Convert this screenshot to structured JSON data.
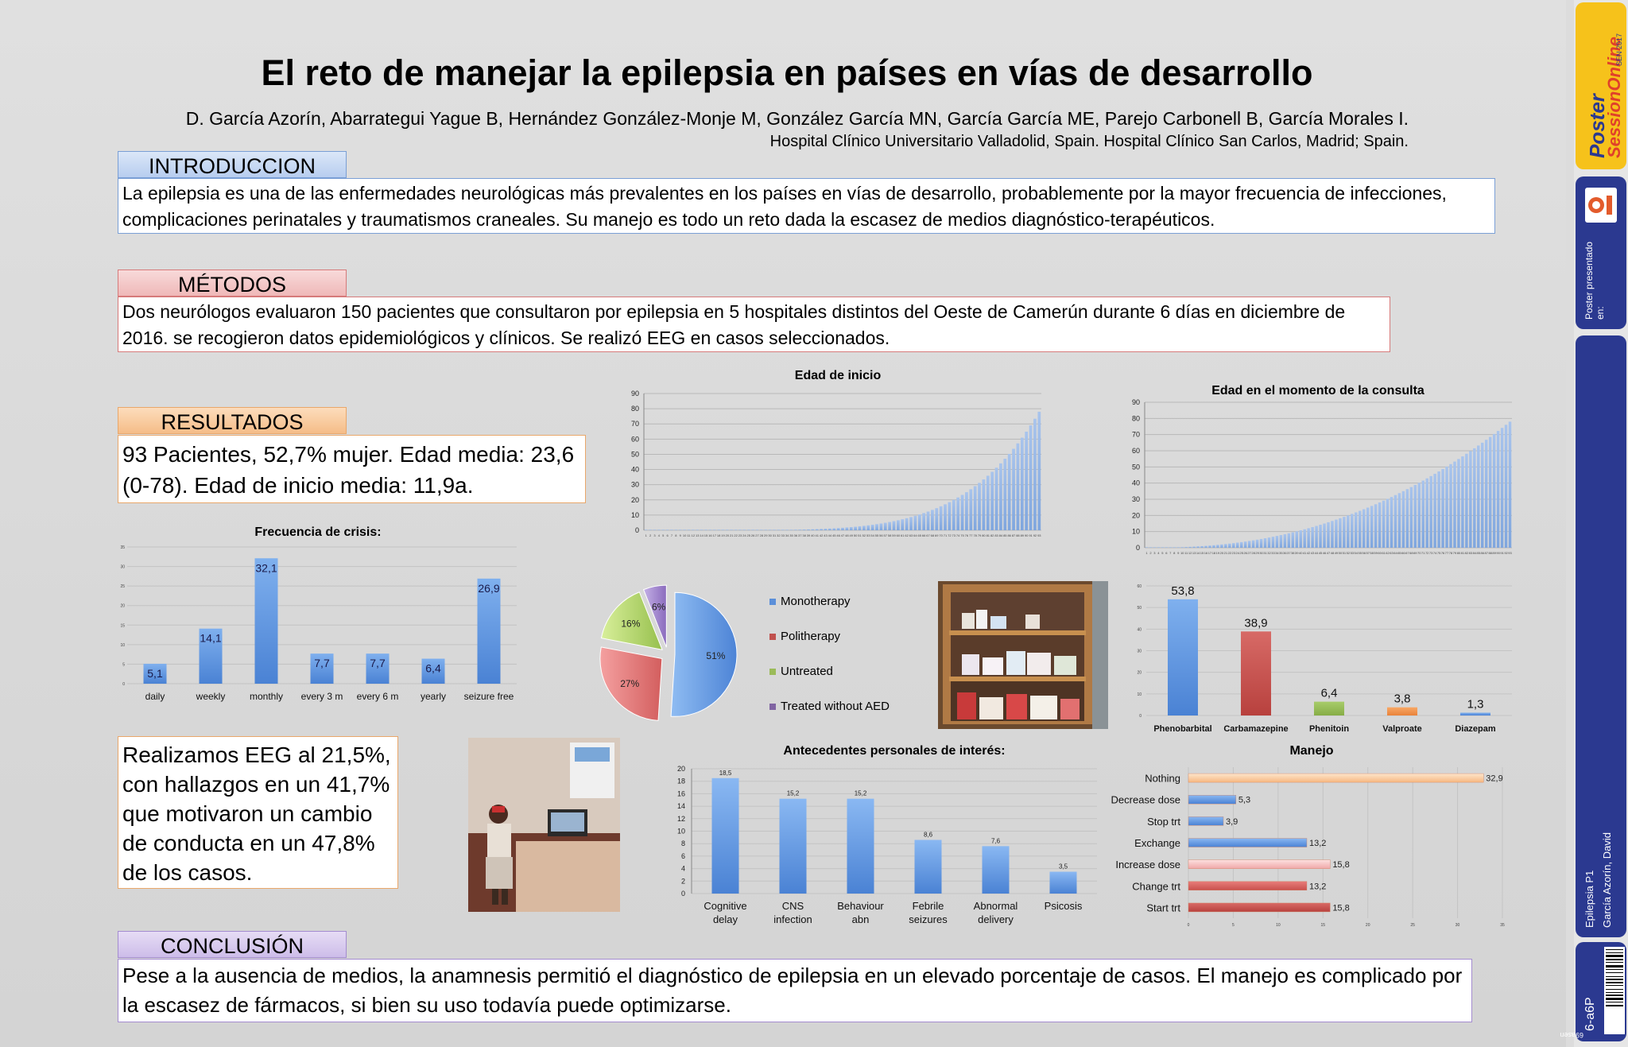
{
  "header": {
    "title": "El reto de manejar la epilepsia en países en vías de desarrollo",
    "authors": "D. García Azorín,  Abarrategui Yague B, Hernández González-Monje M, González García MN, García García ME, Parejo Carbonell B, García Morales I.",
    "affiliation": "Hospital Clínico Universitario Valladolid, Spain. Hospital Clínico San Carlos, Madrid; Spain."
  },
  "sections": {
    "intro": {
      "label": "INTRODUCCION",
      "text": "La epilepsia es una de las enfermedades neurológicas más prevalentes en los países en vías de desarrollo, probablemente por la mayor frecuencia de infecciones, complicaciones perinatales y traumatismos craneales. Su manejo es todo un reto dada la escasez de medios diagnóstico-terapéuticos."
    },
    "methods": {
      "label": "MÉTODOS",
      "text": "Dos neurólogos evaluaron 150 pacientes que consultaron por epilepsia en 5 hospitales distintos del Oeste de Camerún durante 6 días en diciembre de 2016. se recogieron datos epidemiológicos y clínicos. Se realizó EEG en casos seleccionados."
    },
    "results": {
      "label": "RESULTADOS",
      "text": "93 Pacientes, 52,7% mujer. Edad media: 23,6 (0-78). Edad de inicio media: 11,9a."
    },
    "eeg": {
      "text": "Realizamos EEG al 21,5%, con hallazgos en un 41,7% que motivaron un cambio de conducta en un 47,8% de los casos."
    },
    "conclusion": {
      "label": "CONCLUSIÓN",
      "text": "Pese a la ausencia de medios, la anamnesis permitió el diagnóstico de epilepsia en un elevado porcentaje de casos. El manejo es complicado por la escasez de fármacos, si bien su uso todavía puede optimizarse."
    }
  },
  "colors": {
    "intro_label": "#c6d9f5",
    "intro_border": "#7a9fd6",
    "methods_label": "#f5c6c6",
    "methods_border": "#d67a7a",
    "results_label": "#f9cfa3",
    "results_border": "#e9a76a",
    "conclusion_label": "#dccdf0",
    "conclusion_border": "#a48cd0",
    "blue": "#5b8fd9",
    "red": "#c0504d",
    "green": "#9bbb59",
    "orange": "#f79646",
    "purple": "#8064a2"
  },
  "sidebar": {
    "brand_line1": "Poster",
    "brand_line2": "SessionOnline",
    "brand_small": "SEN 2017",
    "presented": "Poster presentado en:",
    "session": "Epilepsia P1",
    "author": "García Azorín, David",
    "code": "6-a6P",
    "code2": "69asen"
  },
  "chart_data": [
    {
      "id": "edad-inicio",
      "type": "bar",
      "title": "Edad de inicio",
      "ylim": [
        0,
        90
      ],
      "yticks": [
        0,
        10,
        20,
        30,
        40,
        50,
        60,
        70,
        80,
        90
      ],
      "n": 93,
      "min": 0,
      "max": 78,
      "mean": 11.9
    },
    {
      "id": "edad-consulta",
      "type": "bar",
      "title": "Edad en el momento de la consulta",
      "ylim": [
        0,
        90
      ],
      "yticks": [
        0,
        10,
        20,
        30,
        40,
        50,
        60,
        70,
        80,
        90
      ],
      "n": 93,
      "min": 0,
      "max": 78,
      "mean": 23.6
    },
    {
      "id": "frecuencia",
      "type": "bar",
      "title": "Frecuencia de crisis:",
      "categories": [
        "daily",
        "weekly",
        "monthly",
        "every 3 m",
        "every 6 m",
        "yearly",
        "seizure free"
      ],
      "values": [
        5.1,
        14.1,
        32.1,
        7.7,
        7.7,
        6.4,
        26.9
      ],
      "labels": [
        "5,1",
        "14,1",
        "32,1",
        "7,7",
        "7,7",
        "6,4",
        "26,9"
      ],
      "ylim": [
        0,
        35
      ],
      "yticks": [
        0,
        5,
        10,
        15,
        20,
        25,
        30,
        35
      ]
    },
    {
      "id": "tratamiento",
      "type": "pie",
      "categories": [
        "Monotherapy",
        "Politherapy",
        "Untreated",
        "Treated without AED"
      ],
      "values": [
        51,
        27,
        16,
        6
      ],
      "labels": [
        "51%",
        "27%",
        "16%",
        "6%"
      ]
    },
    {
      "id": "farmacos",
      "type": "bar",
      "categories": [
        "Phenobarbital",
        "Carbamazepine",
        "Phenitoin",
        "Valproate",
        "Diazepam"
      ],
      "values": [
        53.8,
        38.9,
        6.4,
        3.8,
        1.3
      ],
      "labels": [
        "53,8",
        "38,9",
        "6,4",
        "3,8",
        "1,3"
      ],
      "ylim": [
        0,
        60
      ],
      "yticks": [
        0,
        10,
        20,
        30,
        40,
        50,
        60
      ]
    },
    {
      "id": "antecedentes",
      "type": "bar",
      "title": "Antecedentes  personales de interés:",
      "categories": [
        "Cognitive delay",
        "CNS infection",
        "Behaviour abn",
        "Febrile seizures",
        "Abnormal delivery",
        "Psicosis"
      ],
      "values": [
        18.5,
        15.2,
        15.2,
        8.6,
        7.6,
        3.5
      ],
      "labels": [
        "18,5",
        "15,2",
        "15,2",
        "8,6",
        "7,6",
        "3,5"
      ],
      "ylim": [
        0,
        20
      ],
      "yticks": [
        0,
        2,
        4,
        6,
        8,
        10,
        12,
        14,
        16,
        18,
        20
      ]
    },
    {
      "id": "manejo",
      "type": "bar",
      "orientation": "horizontal",
      "title": "Manejo",
      "categories": [
        "Nothing",
        "Decrease dose",
        "Stop trt",
        "Exchange",
        "Increase dose",
        "Change trt",
        "Start trt"
      ],
      "values": [
        32.9,
        5.3,
        3.9,
        13.2,
        15.8,
        13.2,
        15.8
      ],
      "labels": [
        "32,9",
        "5,3",
        "3,9",
        "13,2",
        "15,8",
        "13,2",
        "15,8"
      ],
      "xlim": [
        0,
        35
      ],
      "xticks": [
        0,
        5,
        10,
        15,
        20,
        25,
        30,
        35
      ]
    }
  ]
}
